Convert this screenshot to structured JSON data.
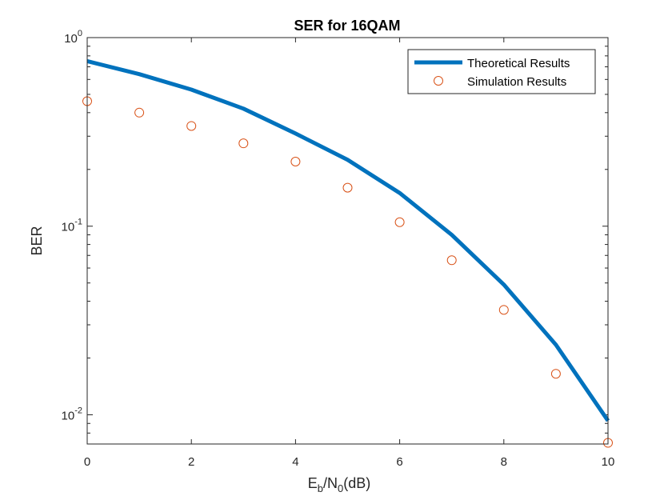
{
  "chart_data": {
    "type": "line",
    "title": "SER for 16QAM",
    "xlabel": {
      "main": "E",
      "sub1": "b",
      "mid": "/N",
      "sub2": "0",
      "tail": "(dB)"
    },
    "ylabel": "BER",
    "xlim": [
      0,
      10
    ],
    "ylim": [
      0.007,
      1
    ],
    "yscale": "log",
    "x_ticks": [
      "0",
      "2",
      "4",
      "6",
      "8",
      "10"
    ],
    "x_tick_values": [
      0,
      2,
      4,
      6,
      8,
      10
    ],
    "y_ticks": [
      {
        "value": 1,
        "base": "10",
        "exp": "0"
      },
      {
        "value": 0.1,
        "base": "10",
        "exp": "-1"
      },
      {
        "value": 0.01,
        "base": "10",
        "exp": "-2"
      }
    ],
    "grid": false,
    "legend_position": "top-right",
    "x": [
      0,
      1,
      2,
      3,
      4,
      5,
      6,
      7,
      8,
      9,
      10
    ],
    "series": [
      {
        "name": "Theoretical Results",
        "style": "line",
        "color": "#0072BD",
        "values": [
          0.75,
          0.64,
          0.53,
          0.42,
          0.31,
          0.225,
          0.15,
          0.09,
          0.049,
          0.0235,
          0.0093
        ]
      },
      {
        "name": "Simulation Results",
        "style": "markers",
        "color": "#D95319",
        "values": [
          0.46,
          0.4,
          0.34,
          0.275,
          0.22,
          0.16,
          0.105,
          0.066,
          0.036,
          0.0165,
          0.0071
        ]
      }
    ]
  }
}
